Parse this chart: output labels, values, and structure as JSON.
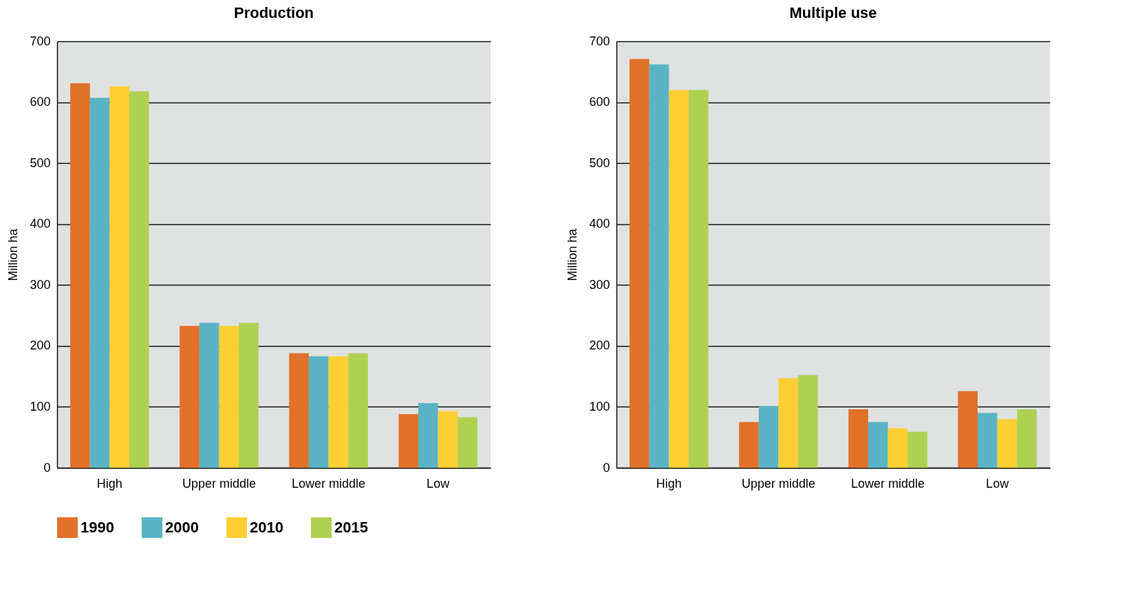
{
  "chart_data": [
    {
      "type": "bar",
      "title": "Production",
      "ylabel": "Million ha",
      "categories": [
        "High",
        "Upper middle",
        "Lower middle",
        "Low"
      ],
      "ylim": [
        0,
        700
      ],
      "yticks": [
        0,
        100,
        200,
        300,
        400,
        500,
        600,
        700
      ],
      "grid": "y",
      "legend": "bottom",
      "series": [
        {
          "name": "1990",
          "color": "#e2712a",
          "values": [
            631,
            233,
            188,
            88
          ]
        },
        {
          "name": "2000",
          "color": "#5ab4c4",
          "values": [
            607,
            238,
            183,
            106
          ]
        },
        {
          "name": "2010",
          "color": "#fecf33",
          "values": [
            626,
            233,
            183,
            93
          ]
        },
        {
          "name": "2015",
          "color": "#afd152",
          "values": [
            618,
            238,
            188,
            83
          ]
        }
      ]
    },
    {
      "type": "bar",
      "title": "Multiple use",
      "ylabel": "Million ha",
      "categories": [
        "High",
        "Upper middle",
        "Lower middle",
        "Low"
      ],
      "ylim": [
        0,
        700
      ],
      "yticks": [
        0,
        100,
        200,
        300,
        400,
        500,
        600,
        700
      ],
      "grid": "y",
      "legend": "bottom",
      "series": [
        {
          "name": "1990",
          "color": "#e2712a",
          "values": [
            671,
            75,
            96,
            126
          ]
        },
        {
          "name": "2000",
          "color": "#5ab4c4",
          "values": [
            662,
            101,
            75,
            90
          ]
        },
        {
          "name": "2010",
          "color": "#fecf33",
          "values": [
            620,
            147,
            65,
            80
          ]
        },
        {
          "name": "2015",
          "color": "#afd152",
          "values": [
            620,
            152,
            59,
            96
          ]
        }
      ]
    }
  ]
}
